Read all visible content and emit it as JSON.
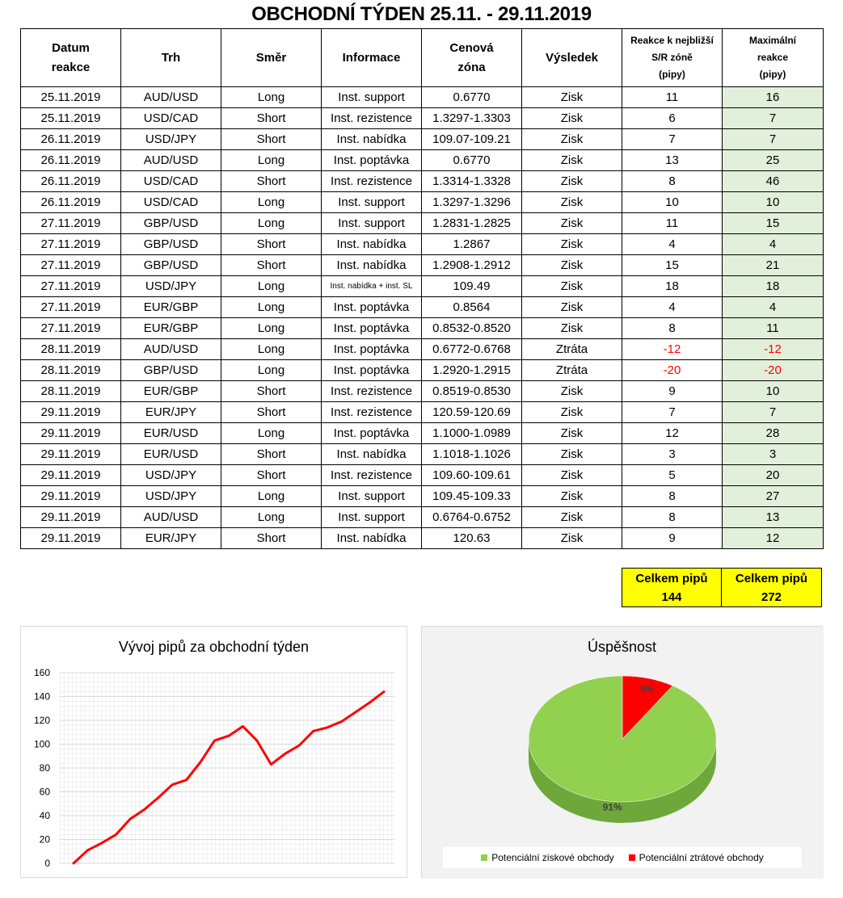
{
  "title": "OBCHODNÍ TÝDEN 25.11. - 29.11.2019",
  "headers": {
    "date": [
      "Datum",
      "reakce"
    ],
    "market": "Trh",
    "direction": "Směr",
    "info": "Informace",
    "zone": [
      "Cenová",
      "zóna"
    ],
    "result": "Výsledek",
    "reaction": [
      "Reakce k nejbližší",
      "S/R zóně",
      "(pipy)"
    ],
    "max": [
      "Maximální",
      "reakce",
      "(pipy)"
    ]
  },
  "rows": [
    {
      "date": "25.11.2019",
      "market": "AUD/USD",
      "dir": "Long",
      "info": "Inst. support",
      "zone": "0.6770",
      "result": "Zisk",
      "reaction": "11",
      "max": "16"
    },
    {
      "date": "25.11.2019",
      "market": "USD/CAD",
      "dir": "Short",
      "info": "Inst. rezistence",
      "zone": "1.3297-1.3303",
      "result": "Zisk",
      "reaction": "6",
      "max": "7"
    },
    {
      "date": "26.11.2019",
      "market": "USD/JPY",
      "dir": "Short",
      "info": "Inst. nabídka",
      "zone": "109.07-109.21",
      "result": "Zisk",
      "reaction": "7",
      "max": "7"
    },
    {
      "date": "26.11.2019",
      "market": "AUD/USD",
      "dir": "Long",
      "info": "Inst. poptávka",
      "zone": "0.6770",
      "result": "Zisk",
      "reaction": "13",
      "max": "25"
    },
    {
      "date": "26.11.2019",
      "market": "USD/CAD",
      "dir": "Short",
      "info": "Inst. rezistence",
      "zone": "1.3314-1.3328",
      "result": "Zisk",
      "reaction": "8",
      "max": "46"
    },
    {
      "date": "26.11.2019",
      "market": "USD/CAD",
      "dir": "Long",
      "info": "Inst. support",
      "zone": "1.3297-1.3296",
      "result": "Zisk",
      "reaction": "10",
      "max": "10"
    },
    {
      "date": "27.11.2019",
      "market": "GBP/USD",
      "dir": "Long",
      "info": "Inst. support",
      "zone": "1.2831-1.2825",
      "result": "Zisk",
      "reaction": "11",
      "max": "15"
    },
    {
      "date": "27.11.2019",
      "market": "GBP/USD",
      "dir": "Short",
      "info": "Inst. nabídka",
      "zone": "1.2867",
      "result": "Zisk",
      "reaction": "4",
      "max": "4"
    },
    {
      "date": "27.11.2019",
      "market": "GBP/USD",
      "dir": "Short",
      "info": "Inst. nabídka",
      "zone": "1.2908-1.2912",
      "result": "Zisk",
      "reaction": "15",
      "max": "21"
    },
    {
      "date": "27.11.2019",
      "market": "USD/JPY",
      "dir": "Long",
      "info": "Inst. nabídka + inst. SL",
      "zone": "109.49",
      "result": "Zisk",
      "reaction": "18",
      "max": "18"
    },
    {
      "date": "27.11.2019",
      "market": "EUR/GBP",
      "dir": "Long",
      "info": "Inst. poptávka",
      "zone": "0.8564",
      "result": "Zisk",
      "reaction": "4",
      "max": "4"
    },
    {
      "date": "27.11.2019",
      "market": "EUR/GBP",
      "dir": "Long",
      "info": "Inst. poptávka",
      "zone": "0.8532-0.8520",
      "result": "Zisk",
      "reaction": "8",
      "max": "11"
    },
    {
      "date": "28.11.2019",
      "market": "AUD/USD",
      "dir": "Long",
      "info": "Inst. poptávka",
      "zone": "0.6772-0.6768",
      "result": "Ztráta",
      "reaction": "-12",
      "max": "-12"
    },
    {
      "date": "28.11.2019",
      "market": "GBP/USD",
      "dir": "Long",
      "info": "Inst. poptávka",
      "zone": "1.2920-1.2915",
      "result": "Ztráta",
      "reaction": "-20",
      "max": "-20"
    },
    {
      "date": "28.11.2019",
      "market": "EUR/GBP",
      "dir": "Short",
      "info": "Inst. rezistence",
      "zone": "0.8519-0.8530",
      "result": "Zisk",
      "reaction": "9",
      "max": "10"
    },
    {
      "date": "29.11.2019",
      "market": "EUR/JPY",
      "dir": "Short",
      "info": "Inst. rezistence",
      "zone": "120.59-120.69",
      "result": "Zisk",
      "reaction": "7",
      "max": "7"
    },
    {
      "date": "29.11.2019",
      "market": "EUR/USD",
      "dir": "Long",
      "info": "Inst. poptávka",
      "zone": "1.1000-1.0989",
      "result": "Zisk",
      "reaction": "12",
      "max": "28"
    },
    {
      "date": "29.11.2019",
      "market": "EUR/USD",
      "dir": "Short",
      "info": "Inst. nabídka",
      "zone": "1.1018-1.1026",
      "result": "Zisk",
      "reaction": "3",
      "max": "3"
    },
    {
      "date": "29.11.2019",
      "market": "USD/JPY",
      "dir": "Short",
      "info": "Inst. rezistence",
      "zone": "109.60-109.61",
      "result": "Zisk",
      "reaction": "5",
      "max": "20"
    },
    {
      "date": "29.11.2019",
      "market": "USD/JPY",
      "dir": "Long",
      "info": "Inst. support",
      "zone": "109.45-109.33",
      "result": "Zisk",
      "reaction": "8",
      "max": "27"
    },
    {
      "date": "29.11.2019",
      "market": "AUD/USD",
      "dir": "Long",
      "info": "Inst. support",
      "zone": "0.6764-0.6752",
      "result": "Zisk",
      "reaction": "8",
      "max": "13"
    },
    {
      "date": "29.11.2019",
      "market": "EUR/JPY",
      "dir": "Short",
      "info": "Inst. nabídka",
      "zone": "120.63",
      "result": "Zisk",
      "reaction": "9",
      "max": "12"
    }
  ],
  "totals": [
    {
      "label": "Celkem pipů",
      "value": "144"
    },
    {
      "label": "Celkem pipů",
      "value": "272"
    }
  ],
  "colors": {
    "line": "#ff0000",
    "win": "#92d050",
    "loss": "#ff0000",
    "max_cell": "#e2efda",
    "totals_bg": "#ffff00"
  },
  "chart_data": [
    {
      "type": "line",
      "title": "Vývoj pipů za obchodní týden",
      "x": [
        0,
        1,
        2,
        3,
        4,
        5,
        6,
        7,
        8,
        9,
        10,
        11,
        12,
        13,
        14,
        15,
        16,
        17,
        18,
        19,
        20,
        21,
        22
      ],
      "series": [
        {
          "values": [
            0,
            11,
            17,
            24,
            37,
            45,
            55,
            66,
            70,
            85,
            103,
            107,
            115,
            103,
            83,
            92,
            99,
            111,
            114,
            119,
            127,
            135,
            144
          ]
        }
      ],
      "ylim": [
        0,
        160
      ],
      "yticks": [
        0,
        20,
        40,
        60,
        80,
        100,
        120,
        140,
        160
      ],
      "grid": true,
      "legend": "none"
    },
    {
      "type": "pie",
      "title": "Úspěšnost",
      "labels": [
        "Potenciální ziskové obchody",
        "Potenciální ztrátové obchody"
      ],
      "values": [
        91,
        9
      ],
      "value_labels": [
        "91%",
        "9%"
      ],
      "legend": "bottom"
    }
  ]
}
